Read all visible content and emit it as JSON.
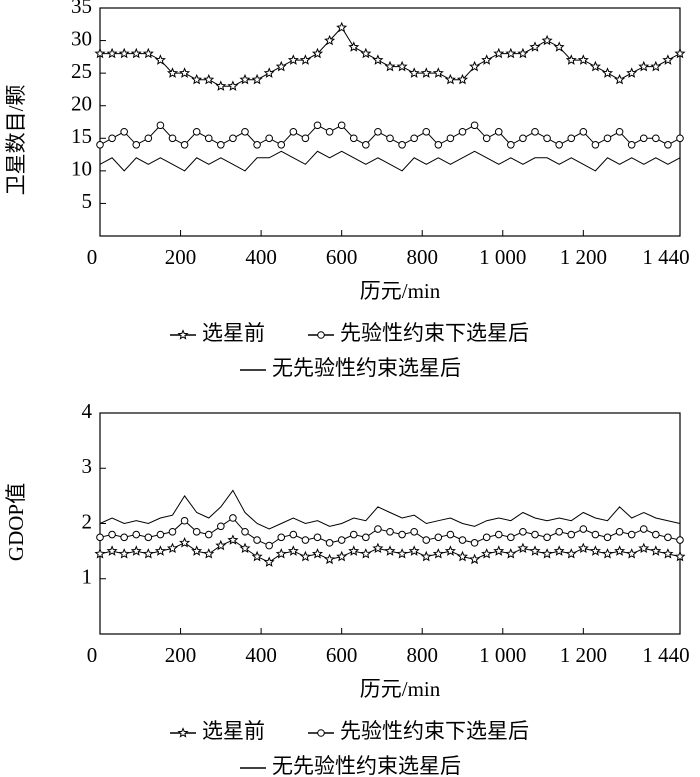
{
  "chart_data": [
    {
      "type": "line",
      "y_label": "卫星数目/颗",
      "x_label": "历元/min",
      "xlim": [
        0,
        1440
      ],
      "xticks": [
        0,
        200,
        400,
        600,
        800,
        {
          "value": 1000,
          "label": "1 000"
        },
        {
          "value": 1200,
          "label": "1 200"
        },
        {
          "value": 1440,
          "label": "1 440"
        }
      ],
      "ylim": [
        0,
        35
      ],
      "yticks": [
        5,
        10,
        15,
        20,
        25,
        30,
        35
      ],
      "x": [
        0,
        30,
        60,
        90,
        120,
        150,
        180,
        210,
        240,
        270,
        300,
        330,
        360,
        390,
        420,
        450,
        480,
        510,
        540,
        570,
        600,
        630,
        660,
        690,
        720,
        750,
        780,
        810,
        840,
        870,
        900,
        930,
        960,
        990,
        1020,
        1050,
        1080,
        1110,
        1140,
        1170,
        1200,
        1230,
        1260,
        1290,
        1320,
        1350,
        1380,
        1410,
        1440
      ],
      "series": [
        {
          "name": "选星前",
          "color": "#000000",
          "marker": "star",
          "values": [
            28,
            28,
            28,
            28,
            28,
            27,
            25,
            25,
            24,
            24,
            23,
            23,
            24,
            24,
            25,
            26,
            27,
            27,
            28,
            30,
            32,
            29,
            28,
            27,
            26,
            26,
            25,
            25,
            25,
            24,
            24,
            26,
            27,
            28,
            28,
            28,
            29,
            30,
            29,
            27,
            27,
            26,
            25,
            24,
            25,
            26,
            26,
            27,
            28
          ]
        },
        {
          "name": "先验性约束下选星后",
          "color": "#000000",
          "marker": "circle",
          "values": [
            14,
            15,
            16,
            14,
            15,
            17,
            15,
            14,
            16,
            15,
            14,
            15,
            16,
            14,
            15,
            14,
            16,
            15,
            17,
            16,
            17,
            15,
            14,
            16,
            15,
            14,
            15,
            16,
            14,
            15,
            16,
            17,
            15,
            16,
            14,
            15,
            16,
            15,
            14,
            15,
            16,
            14,
            15,
            16,
            14,
            15,
            15,
            14,
            15
          ]
        },
        {
          "name": "无先验性约束选星后",
          "color": "#000000",
          "values": [
            11,
            12,
            10,
            12,
            11,
            12,
            11,
            10,
            12,
            11,
            12,
            11,
            10,
            12,
            12,
            13,
            12,
            11,
            13,
            12,
            13,
            12,
            11,
            12,
            11,
            10,
            12,
            11,
            12,
            11,
            12,
            13,
            12,
            11,
            12,
            11,
            12,
            12,
            11,
            12,
            11,
            10,
            12,
            11,
            12,
            11,
            12,
            11,
            12
          ]
        }
      ]
    },
    {
      "type": "line",
      "y_label": "GDOP值",
      "x_label": "历元/min",
      "xlim": [
        0,
        1440
      ],
      "xticks": [
        0,
        200,
        400,
        600,
        800,
        {
          "value": 1000,
          "label": "1 000"
        },
        {
          "value": 1200,
          "label": "1 200"
        },
        {
          "value": 1440,
          "label": "1 440"
        }
      ],
      "ylim": [
        0,
        4
      ],
      "yticks": [
        1,
        2,
        3,
        4
      ],
      "x": [
        0,
        30,
        60,
        90,
        120,
        150,
        180,
        210,
        240,
        270,
        300,
        330,
        360,
        390,
        420,
        450,
        480,
        510,
        540,
        570,
        600,
        630,
        660,
        690,
        720,
        750,
        780,
        810,
        840,
        870,
        900,
        930,
        960,
        990,
        1020,
        1050,
        1080,
        1110,
        1140,
        1170,
        1200,
        1230,
        1260,
        1290,
        1320,
        1350,
        1380,
        1410,
        1440
      ],
      "series": [
        {
          "name": "选星前",
          "color": "#000000",
          "marker": "star",
          "values": [
            1.45,
            1.5,
            1.45,
            1.5,
            1.45,
            1.5,
            1.55,
            1.65,
            1.5,
            1.45,
            1.6,
            1.7,
            1.55,
            1.4,
            1.3,
            1.45,
            1.5,
            1.4,
            1.45,
            1.35,
            1.4,
            1.5,
            1.45,
            1.55,
            1.5,
            1.45,
            1.5,
            1.4,
            1.45,
            1.5,
            1.4,
            1.35,
            1.45,
            1.5,
            1.45,
            1.55,
            1.5,
            1.45,
            1.5,
            1.45,
            1.55,
            1.5,
            1.45,
            1.5,
            1.45,
            1.55,
            1.5,
            1.45,
            1.4
          ]
        },
        {
          "name": "先验性约束下选星后",
          "color": "#000000",
          "marker": "circle",
          "values": [
            1.75,
            1.8,
            1.75,
            1.8,
            1.75,
            1.8,
            1.85,
            2.05,
            1.85,
            1.8,
            1.95,
            2.1,
            1.85,
            1.7,
            1.6,
            1.75,
            1.8,
            1.7,
            1.75,
            1.65,
            1.7,
            1.8,
            1.75,
            1.9,
            1.85,
            1.8,
            1.85,
            1.7,
            1.75,
            1.8,
            1.7,
            1.65,
            1.75,
            1.8,
            1.75,
            1.85,
            1.8,
            1.75,
            1.85,
            1.8,
            1.9,
            1.8,
            1.75,
            1.85,
            1.8,
            1.9,
            1.8,
            1.75,
            1.7
          ]
        },
        {
          "name": "无先验性约束选星后",
          "color": "#000000",
          "values": [
            2.0,
            2.1,
            2.0,
            2.05,
            2.0,
            2.1,
            2.15,
            2.5,
            2.2,
            2.1,
            2.3,
            2.6,
            2.2,
            2.0,
            1.9,
            2.0,
            2.1,
            2.0,
            2.05,
            1.95,
            2.0,
            2.1,
            2.05,
            2.3,
            2.2,
            2.1,
            2.15,
            2.0,
            2.05,
            2.1,
            2.0,
            1.95,
            2.05,
            2.1,
            2.05,
            2.2,
            2.1,
            2.05,
            2.1,
            2.05,
            2.2,
            2.1,
            2.05,
            2.3,
            2.1,
            2.2,
            2.1,
            2.05,
            2.0
          ]
        }
      ]
    }
  ]
}
